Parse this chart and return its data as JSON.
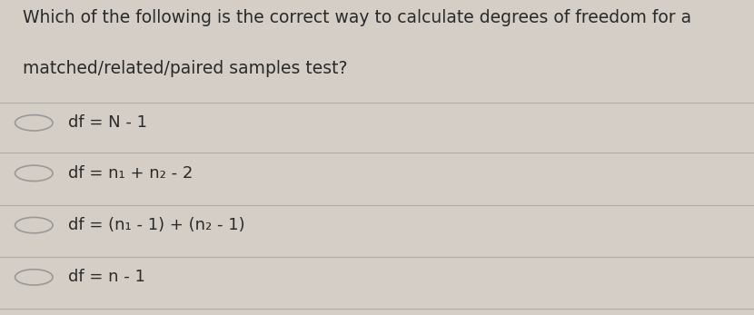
{
  "background_color": "#d4cec6",
  "question_line1": "Which of the following is the correct way to calculate degrees of freedom for a",
  "question_line2": "matched/related/paired samples test?",
  "options": [
    "df = N - 1",
    "df = n₁ + n₂ - 2",
    "df = (n₁ - 1) + (n₂ - 1)",
    "df = n - 1"
  ],
  "text_color": "#2a2a2a",
  "line_color": "#b0aca6",
  "question_fontsize": 13.5,
  "option_fontsize": 13.0,
  "circle_edge_color": "#999999"
}
